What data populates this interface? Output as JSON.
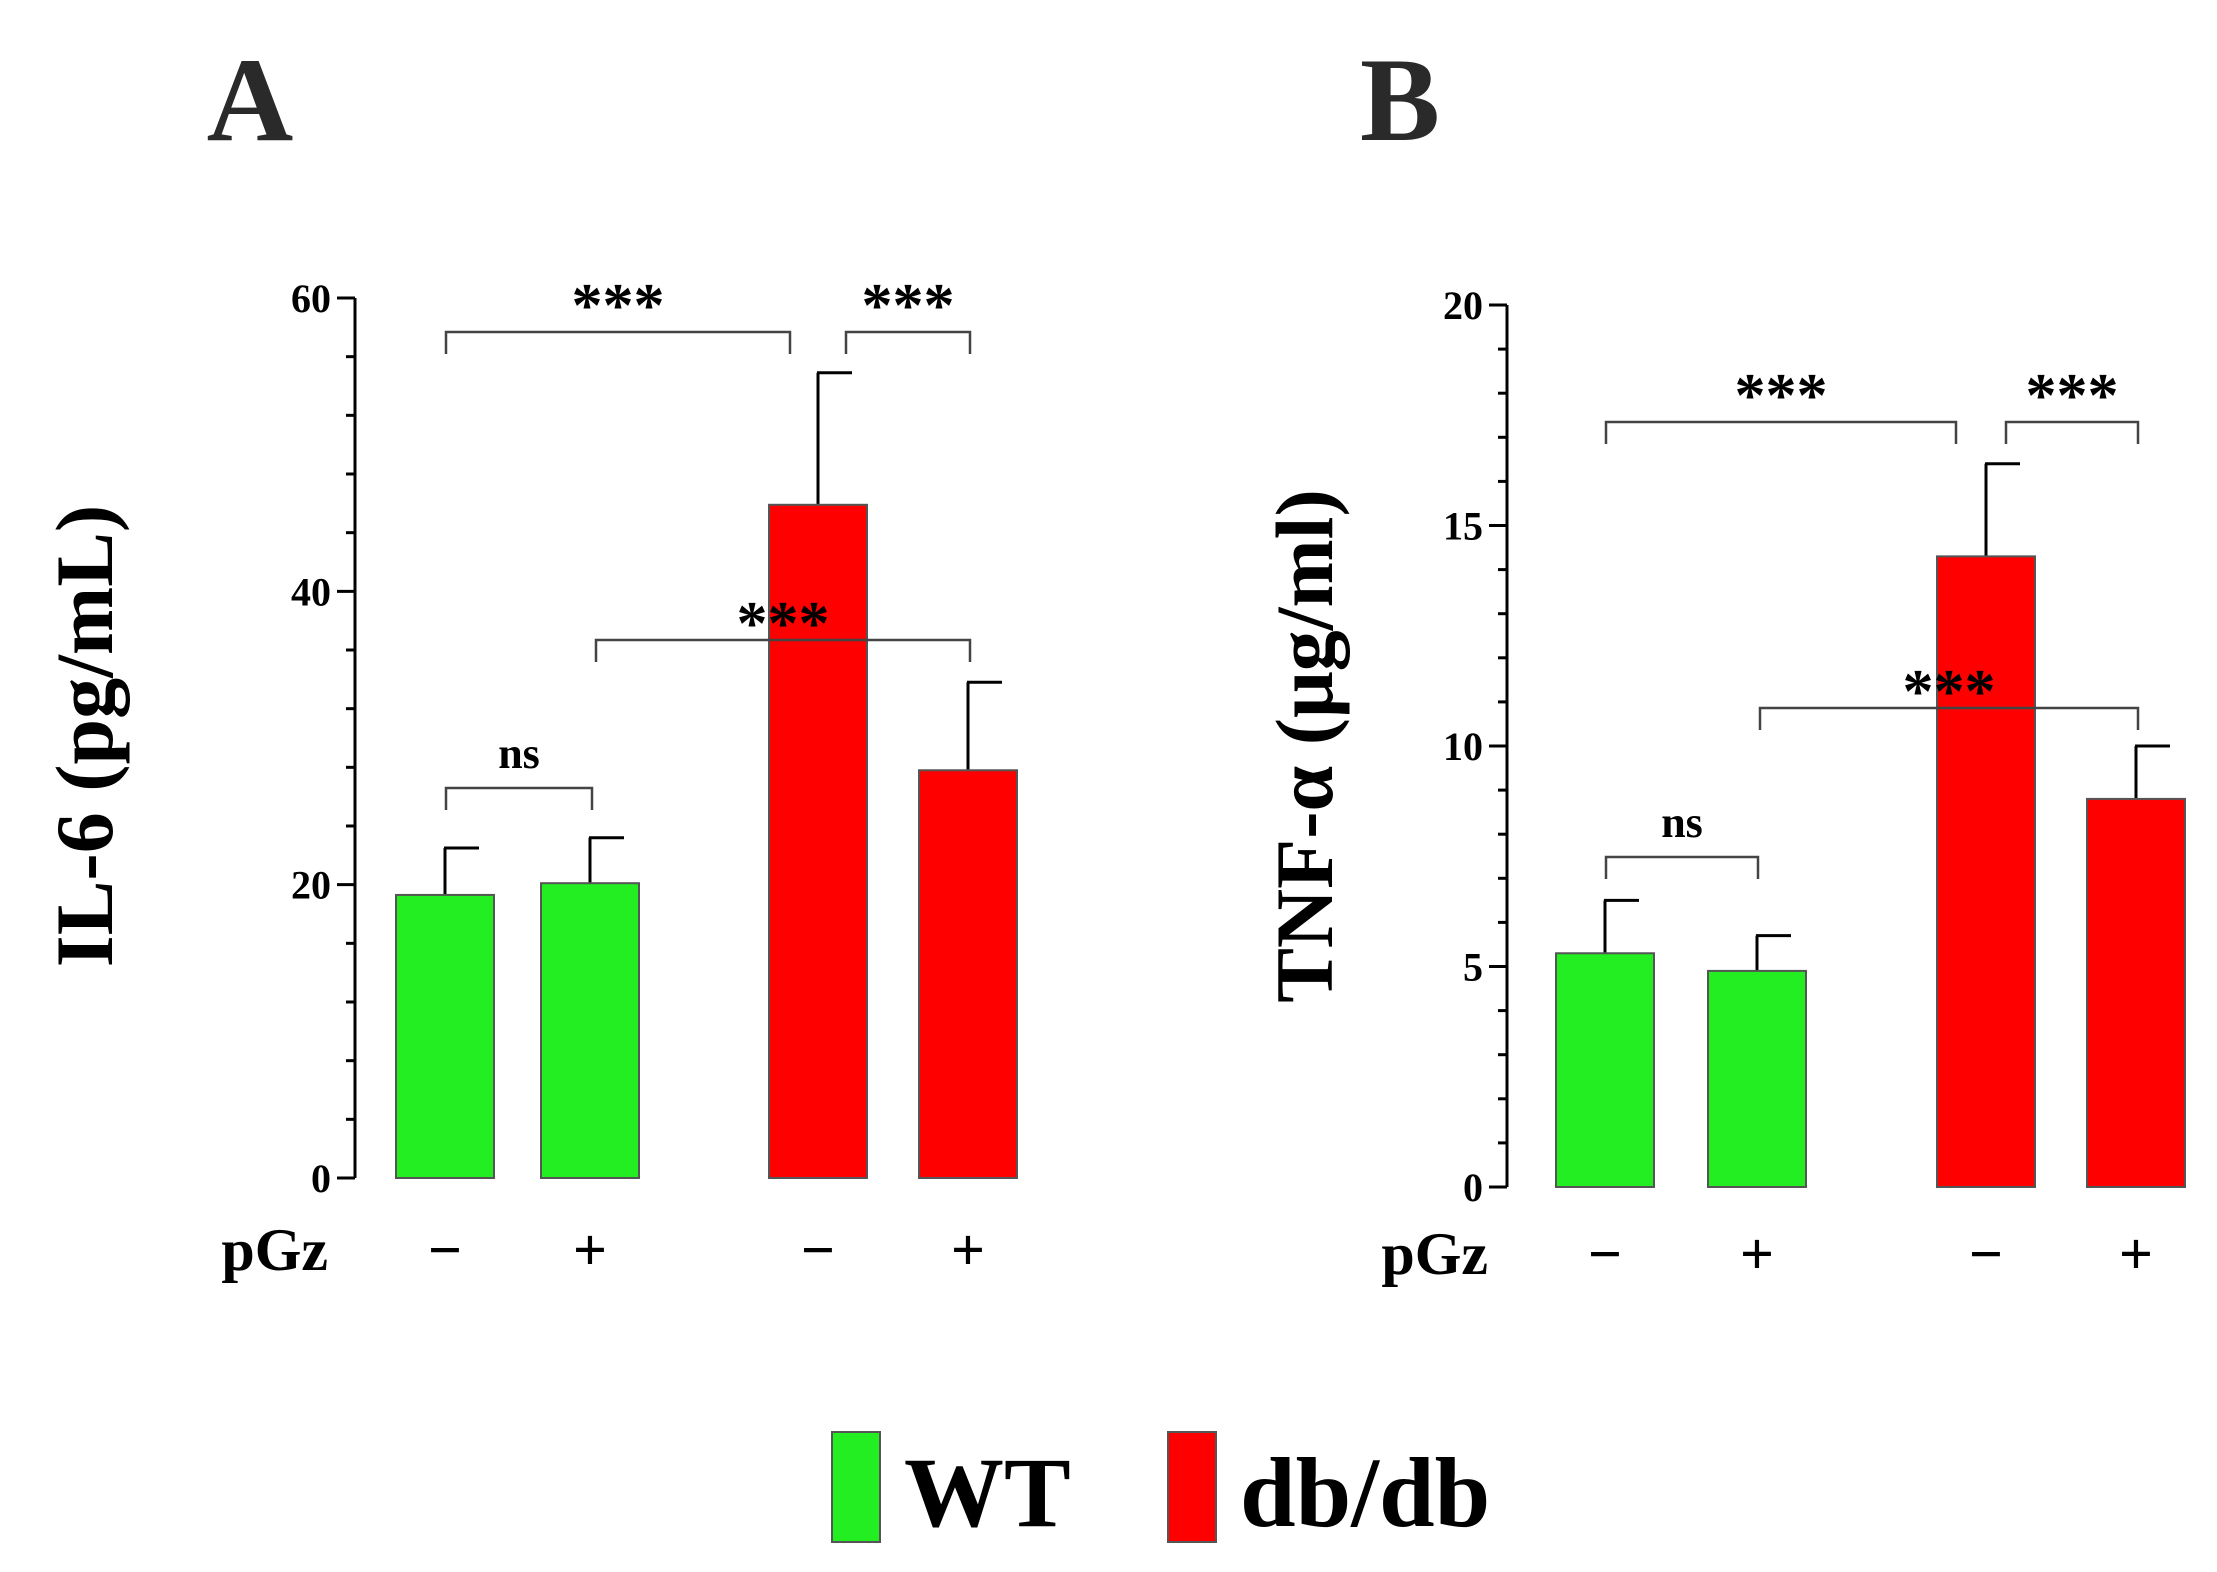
{
  "colors": {
    "wt": "#22ee22",
    "dbdb": "#ff0000",
    "edge": "#555555"
  },
  "legend": [
    {
      "key": "wt",
      "label": "WT"
    },
    {
      "key": "dbdb",
      "label": "db/db"
    }
  ],
  "chart_data": [
    {
      "type": "bar",
      "panel": "A",
      "ylabel": "IL-6 (pg/mL)",
      "xlabel": "pGz",
      "ylim": [
        0,
        60
      ],
      "yticks": [
        0,
        20,
        40,
        60
      ],
      "categories": [
        "WT −",
        "WT +",
        "db/db −",
        "db/db +"
      ],
      "treatment": [
        "−",
        "+",
        "−",
        "+"
      ],
      "group": [
        "wt",
        "wt",
        "dbdb",
        "dbdb"
      ],
      "values": [
        19.3,
        20.1,
        45.9,
        27.8
      ],
      "errors": [
        3.2,
        3.1,
        9.0,
        6.0
      ],
      "significance": [
        {
          "from": 0,
          "to": 1,
          "label": "ns"
        },
        {
          "from": 0,
          "to": 2,
          "label": "***"
        },
        {
          "from": 2,
          "to": 3,
          "label": "***"
        },
        {
          "from": 1,
          "to": 3,
          "label": "***"
        }
      ]
    },
    {
      "type": "bar",
      "panel": "B",
      "ylabel": "TNF-α (μg/ml)",
      "xlabel": "pGz",
      "ylim": [
        0,
        20
      ],
      "yticks": [
        0,
        5,
        10,
        15,
        20
      ],
      "categories": [
        "WT −",
        "WT +",
        "db/db −",
        "db/db +"
      ],
      "treatment": [
        "−",
        "+",
        "−",
        "+"
      ],
      "group": [
        "wt",
        "wt",
        "dbdb",
        "dbdb"
      ],
      "values": [
        5.3,
        4.9,
        14.3,
        8.8
      ],
      "errors": [
        1.2,
        0.8,
        2.1,
        1.2
      ],
      "significance": [
        {
          "from": 0,
          "to": 1,
          "label": "ns"
        },
        {
          "from": 0,
          "to": 2,
          "label": "***"
        },
        {
          "from": 2,
          "to": 3,
          "label": "***"
        },
        {
          "from": 1,
          "to": 3,
          "label": "***"
        }
      ]
    }
  ]
}
